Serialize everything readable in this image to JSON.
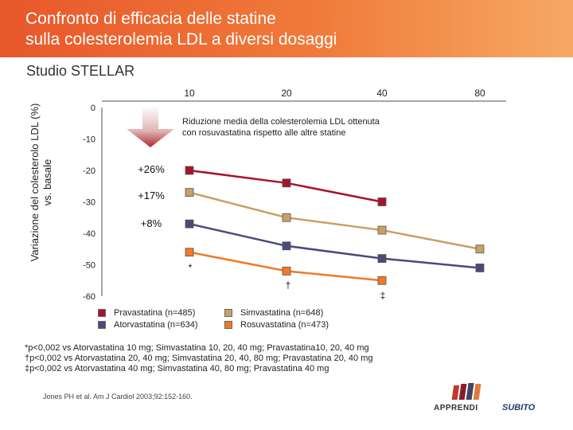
{
  "header": {
    "title": "Confronto di efficacia delle statine\nsulla colesterolemia LDL a diversi dosaggi"
  },
  "subtitle": "Studio STELLAR",
  "chart_data": {
    "type": "line",
    "title": "Confronto di efficacia delle statine sulla colesterolemia LDL a diversi dosaggi",
    "ylabel_lines": [
      "Variazione del colesterolo LDL (%)",
      "vs. basale"
    ],
    "xlabel": "",
    "categories": [
      "10",
      "20",
      "40",
      "80"
    ],
    "y_ticks": [
      "0",
      "-10",
      "-20",
      "-30",
      "-40",
      "-50",
      "-60"
    ],
    "ylim": [
      -60,
      0
    ],
    "series": [
      {
        "name": "Pravastatina (n=485)",
        "color": "#a8132a",
        "values": [
          -20,
          -24,
          -30,
          null
        ]
      },
      {
        "name": "Simvastatina (n=648)",
        "color": "#c9a066",
        "values": [
          -27,
          -35,
          -39,
          -45
        ]
      },
      {
        "name": "Atorvastatina (n=634)",
        "color": "#4a4a7a",
        "values": [
          -37,
          -44,
          -48,
          -51
        ]
      },
      {
        "name": "Rosuvastatina (n=473)",
        "color": "#f07a28",
        "values": [
          -46,
          -52,
          -55,
          null
        ]
      }
    ],
    "percent_labels": [
      "+26%",
      "+17%",
      "+8%"
    ],
    "significance_marks": [
      "*",
      "†",
      "‡"
    ],
    "annotation": "Riduzione media della colesterolemia LDL ottenuta\ncon rosuvastatina rispetto alle altre statine"
  },
  "footnotes": [
    "*p<0,002 vs Atorvastatina 10 mg; Simvastatina 10, 20, 40 mg; Pravastatina10, 20, 40 mg",
    "†p<0,002 vs Atorvastatina 20, 40 mg; Simvastatina 20, 40, 80 mg; Pravastatina 20, 40 mg",
    "‡p<0,002 vs Atorvastatina 40 mg; Simvastatina 40, 80 mg; Pravastatina 40 mg"
  ],
  "source": "Jones PH et al. Am J Cardiol 2003;92:152-160.",
  "logo": {
    "name": "APPRENDI",
    "subito": "SUBITO"
  }
}
